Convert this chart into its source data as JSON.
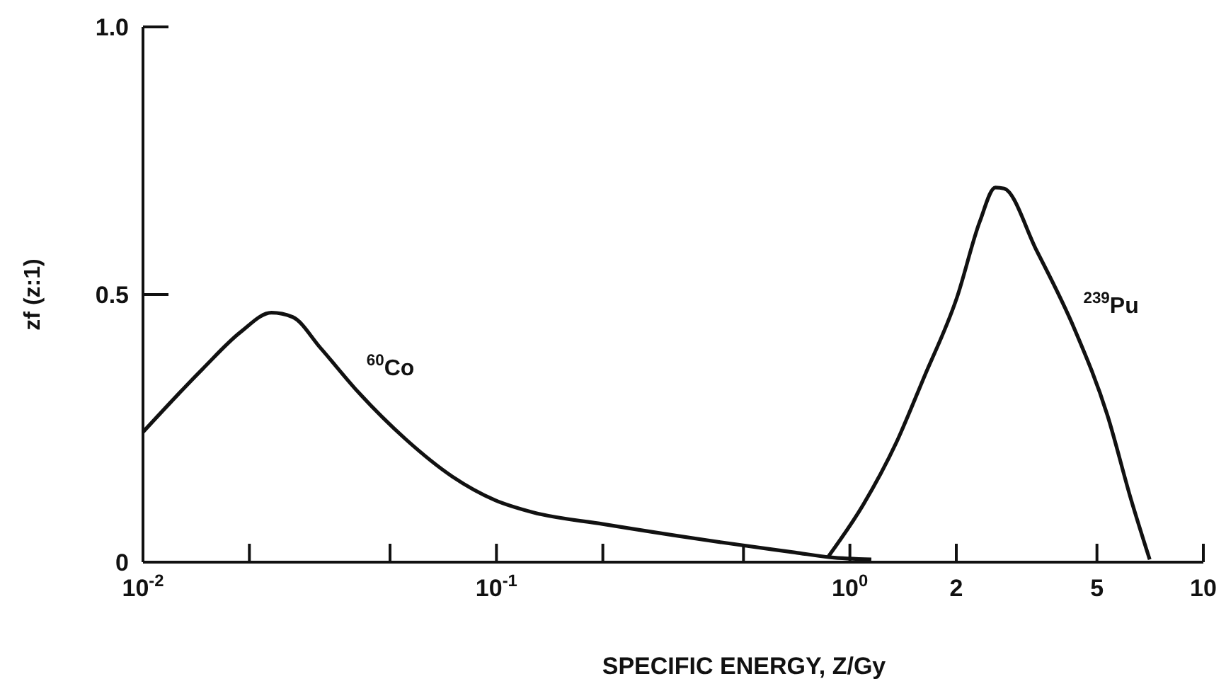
{
  "chart_data": {
    "type": "line",
    "xlabel": "SPECIFIC ENERGY, Z/Gy",
    "ylabel": "zf (z:1)",
    "log": "x",
    "xlim": [
      0.01,
      10
    ],
    "ylim": [
      0,
      1
    ],
    "xticks": [
      {
        "value": 0.01,
        "label": "10$^{-2}$"
      },
      {
        "value": 0.02,
        "label": null
      },
      {
        "value": 0.05,
        "label": null
      },
      {
        "value": 0.1,
        "label": "10$^{-1}$"
      },
      {
        "value": 0.2,
        "label": null
      },
      {
        "value": 0.5,
        "label": null
      },
      {
        "value": 1,
        "label": "10$^{0}$"
      },
      2,
      5,
      10
    ],
    "yticks": [
      0,
      0.5,
      {
        "value": 1,
        "label": "1.0"
      }
    ],
    "line_style": "solid",
    "series": [
      {
        "name": "$^{60}$Co",
        "color": "#111111",
        "x": [
          0.01,
          0.0147,
          0.0189,
          0.0231,
          0.0265,
          0.0318,
          0.0406,
          0.0553,
          0.075,
          0.099,
          0.127,
          0.201,
          0.433,
          0.7,
          0.88,
          1.15
        ],
        "values": [
          0.243,
          0.36,
          0.43,
          0.466,
          0.458,
          0.4,
          0.318,
          0.23,
          0.16,
          0.116,
          0.093,
          0.071,
          0.037,
          0.018,
          0.009,
          0.005
        ]
      },
      {
        "name": "$^{239}$Pu",
        "color": "#111111",
        "x": [
          0.87,
          1.09,
          1.35,
          1.62,
          2.01,
          2.33,
          2.58,
          2.73,
          3.37,
          4.33,
          5.35,
          6.25,
          7.05
        ],
        "values": [
          0.011,
          0.107,
          0.222,
          0.345,
          0.495,
          0.636,
          0.7,
          0.698,
          0.583,
          0.434,
          0.275,
          0.116,
          0.005
        ]
      }
    ]
  }
}
